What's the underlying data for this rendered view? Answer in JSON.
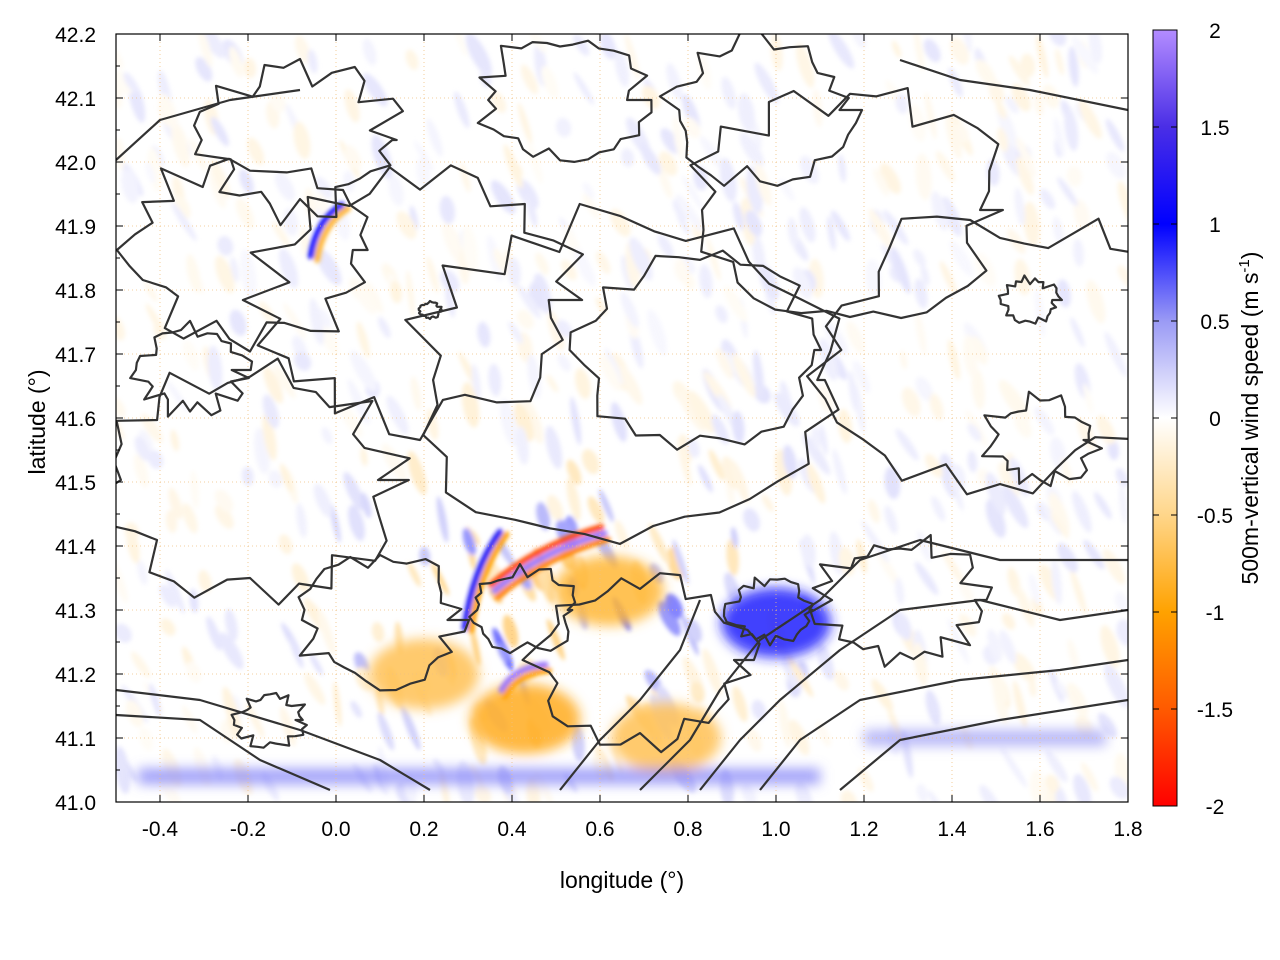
{
  "chart_data": {
    "type": "heatmap",
    "title": "",
    "xlabel": "longitude (°)",
    "ylabel": "latitude (°)",
    "colorbar_label_main": "500m-vertical wind speed (m s",
    "colorbar_label_sup": "-1",
    "colorbar_label_end": ")",
    "xlim": [
      -0.5,
      1.8
    ],
    "ylim": [
      41.0,
      42.2
    ],
    "x_ticks": [
      -0.4,
      -0.2,
      0.0,
      0.2,
      0.4,
      0.6,
      0.8,
      1.0,
      1.2,
      1.4,
      1.6,
      1.8
    ],
    "x_tick_labels": [
      "-0.4",
      "-0.2",
      "0.0",
      "0.2",
      "0.4",
      "0.6",
      "0.8",
      "1.0",
      "1.2",
      "1.4",
      "1.6",
      "1.8"
    ],
    "y_ticks": [
      41.0,
      41.1,
      41.2,
      41.3,
      41.4,
      41.5,
      41.6,
      41.7,
      41.8,
      41.9,
      42.0,
      42.1,
      42.2
    ],
    "y_tick_labels": [
      "41.0",
      "41.1",
      "41.2",
      "41.3",
      "41.4",
      "41.5",
      "41.6",
      "41.7",
      "41.8",
      "41.9",
      "42.0",
      "42.1",
      "42.2"
    ],
    "colorbar_range": [
      -2,
      2
    ],
    "colorbar_ticks": [
      2,
      1.5,
      1,
      0.5,
      0,
      -0.5,
      -1,
      -1.5,
      -2
    ],
    "colorbar_tick_labels": [
      "2",
      "1.5",
      "1",
      "0.5",
      "0",
      "-0.5",
      "-1",
      "-1.5",
      "-2"
    ],
    "colormap": [
      {
        "value": -2.0,
        "color": "#ff0000"
      },
      {
        "value": -1.5,
        "color": "#ff5a00"
      },
      {
        "value": -1.0,
        "color": "#ffa200"
      },
      {
        "value": -0.5,
        "color": "#ffd68a"
      },
      {
        "value": 0.0,
        "color": "#ffffff"
      },
      {
        "value": 0.5,
        "color": "#9a9af5"
      },
      {
        "value": 1.0,
        "color": "#0000ff"
      },
      {
        "value": 1.5,
        "color": "#4a2ee6"
      },
      {
        "value": 2.0,
        "color": "#b38cff"
      }
    ],
    "grid": true,
    "contour_color": "#333333",
    "features": [
      {
        "type": "ridge",
        "x0": 0.36,
        "y0": 41.33,
        "x1": 0.61,
        "y1": 41.42,
        "values": [
          -1.6,
          1.9,
          -1.2
        ]
      },
      {
        "type": "ridge",
        "x0": 0.38,
        "y0": 41.17,
        "x1": 0.48,
        "y1": 41.21,
        "values": [
          1.9,
          -1.0
        ]
      },
      {
        "type": "ridge",
        "x0": 0.3,
        "y0": 41.27,
        "x1": 0.38,
        "y1": 41.42,
        "values": [
          1.2,
          -1.0
        ]
      },
      {
        "type": "ridge",
        "x0": -0.05,
        "y0": 41.85,
        "x1": 0.02,
        "y1": 41.93,
        "values": [
          1.0,
          -0.8
        ]
      },
      {
        "type": "blob",
        "x": 0.43,
        "y": 41.13,
        "value": -0.9
      },
      {
        "type": "blob",
        "x": 0.62,
        "y": 41.33,
        "value": -0.8
      },
      {
        "type": "blob",
        "x": 0.2,
        "y": 41.2,
        "value": -0.7
      },
      {
        "type": "blob",
        "x": 0.75,
        "y": 41.1,
        "value": -0.7
      },
      {
        "type": "blob",
        "x": 1.0,
        "y": 41.28,
        "value": 0.9
      },
      {
        "type": "band",
        "x0": -0.45,
        "x1": 1.1,
        "y": 41.04,
        "value": 0.6
      },
      {
        "type": "band",
        "x0": 1.2,
        "x1": 1.75,
        "y": 41.1,
        "value": 0.5
      }
    ]
  }
}
